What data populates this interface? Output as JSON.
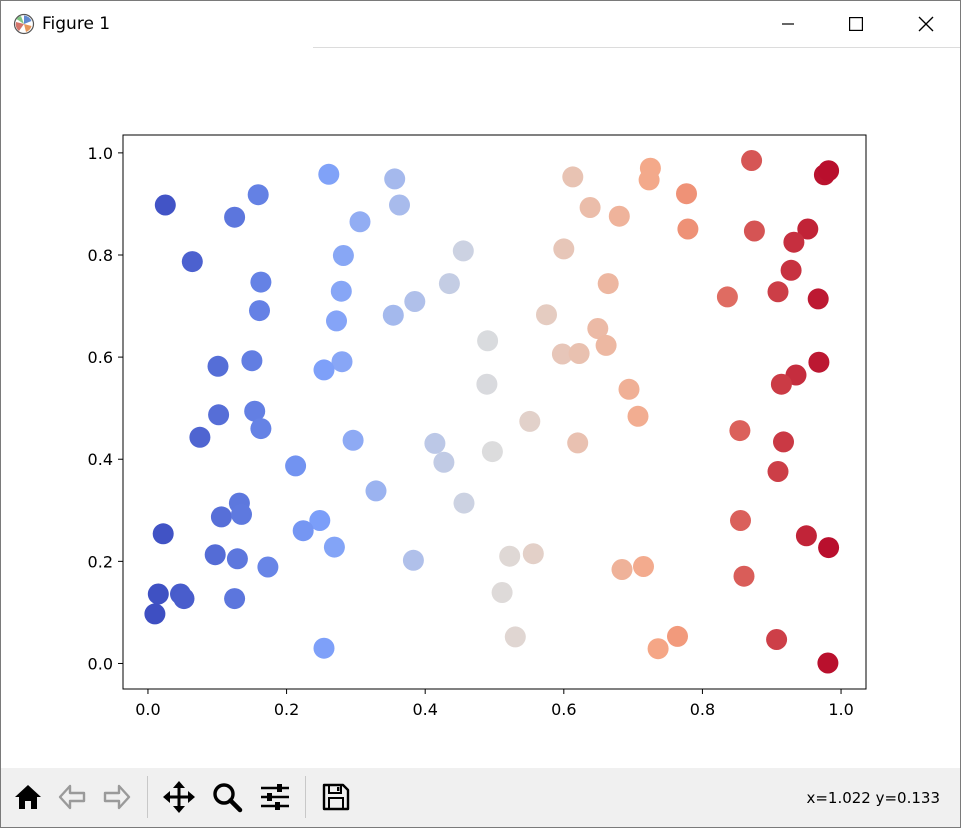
{
  "window": {
    "title": "Figure 1",
    "controls": {
      "minimize": "minimize",
      "maximize": "maximize",
      "close": "close"
    }
  },
  "toolbar": {
    "buttons": [
      "home-icon",
      "back-icon",
      "forward-icon",
      "pan-icon",
      "zoom-icon",
      "configure-subplots-icon",
      "save-icon"
    ],
    "coords": "x=1.022 y=0.133"
  },
  "chart_data": {
    "type": "scatter",
    "title": "",
    "xlabel": "",
    "ylabel": "",
    "xlim": [
      -0.036,
      1.036
    ],
    "ylim": [
      -0.05,
      1.035
    ],
    "xticks": [
      "0.0",
      "0.2",
      "0.4",
      "0.6",
      "0.8",
      "1.0"
    ],
    "yticks": [
      "0.0",
      "0.2",
      "0.4",
      "0.6",
      "0.8",
      "1.0"
    ],
    "colormap": "coolwarm",
    "color_by": "x",
    "grid": false,
    "points": [
      [
        0.025,
        0.898
      ],
      [
        0.064,
        0.787
      ],
      [
        0.125,
        0.874
      ],
      [
        0.159,
        0.918
      ],
      [
        0.163,
        0.747
      ],
      [
        0.161,
        0.691
      ],
      [
        0.15,
        0.593
      ],
      [
        0.101,
        0.582
      ],
      [
        0.102,
        0.487
      ],
      [
        0.154,
        0.494
      ],
      [
        0.163,
        0.46
      ],
      [
        0.075,
        0.443
      ],
      [
        0.022,
        0.254
      ],
      [
        0.106,
        0.287
      ],
      [
        0.132,
        0.314
      ],
      [
        0.135,
        0.292
      ],
      [
        0.097,
        0.213
      ],
      [
        0.129,
        0.205
      ],
      [
        0.173,
        0.189
      ],
      [
        0.125,
        0.127
      ],
      [
        0.015,
        0.136
      ],
      [
        0.047,
        0.136
      ],
      [
        0.052,
        0.127
      ],
      [
        0.01,
        0.097
      ],
      [
        0.261,
        0.958
      ],
      [
        0.356,
        0.949
      ],
      [
        0.306,
        0.865
      ],
      [
        0.363,
        0.898
      ],
      [
        0.282,
        0.799
      ],
      [
        0.279,
        0.729
      ],
      [
        0.272,
        0.671
      ],
      [
        0.354,
        0.682
      ],
      [
        0.385,
        0.709
      ],
      [
        0.28,
        0.591
      ],
      [
        0.254,
        0.575
      ],
      [
        0.296,
        0.437
      ],
      [
        0.213,
        0.387
      ],
      [
        0.329,
        0.338
      ],
      [
        0.248,
        0.28
      ],
      [
        0.224,
        0.26
      ],
      [
        0.269,
        0.228
      ],
      [
        0.383,
        0.202
      ],
      [
        0.254,
        0.03
      ],
      [
        0.455,
        0.808
      ],
      [
        0.435,
        0.744
      ],
      [
        0.49,
        0.632
      ],
      [
        0.489,
        0.547
      ],
      [
        0.414,
        0.431
      ],
      [
        0.427,
        0.394
      ],
      [
        0.456,
        0.314
      ],
      [
        0.497,
        0.415
      ],
      [
        0.613,
        0.953
      ],
      [
        0.638,
        0.893
      ],
      [
        0.68,
        0.876
      ],
      [
        0.6,
        0.812
      ],
      [
        0.664,
        0.744
      ],
      [
        0.575,
        0.683
      ],
      [
        0.649,
        0.656
      ],
      [
        0.661,
        0.623
      ],
      [
        0.598,
        0.606
      ],
      [
        0.622,
        0.607
      ],
      [
        0.551,
        0.474
      ],
      [
        0.62,
        0.432
      ],
      [
        0.522,
        0.21
      ],
      [
        0.556,
        0.215
      ],
      [
        0.511,
        0.139
      ],
      [
        0.53,
        0.052
      ],
      [
        0.725,
        0.97
      ],
      [
        0.723,
        0.947
      ],
      [
        0.777,
        0.92
      ],
      [
        0.779,
        0.851
      ],
      [
        0.694,
        0.537
      ],
      [
        0.707,
        0.484
      ],
      [
        0.684,
        0.184
      ],
      [
        0.715,
        0.19
      ],
      [
        0.736,
        0.029
      ],
      [
        0.764,
        0.053
      ],
      [
        0.871,
        0.985
      ],
      [
        0.976,
        0.957
      ],
      [
        0.982,
        0.965
      ],
      [
        0.875,
        0.847
      ],
      [
        0.952,
        0.851
      ],
      [
        0.932,
        0.825
      ],
      [
        0.928,
        0.77
      ],
      [
        0.836,
        0.718
      ],
      [
        0.909,
        0.728
      ],
      [
        0.967,
        0.714
      ],
      [
        0.968,
        0.59
      ],
      [
        0.935,
        0.565
      ],
      [
        0.914,
        0.547
      ],
      [
        0.854,
        0.456
      ],
      [
        0.917,
        0.434
      ],
      [
        0.909,
        0.376
      ],
      [
        0.855,
        0.28
      ],
      [
        0.95,
        0.25
      ],
      [
        0.982,
        0.227
      ],
      [
        0.86,
        0.171
      ],
      [
        0.907,
        0.047
      ],
      [
        0.981,
        0.001
      ]
    ]
  }
}
